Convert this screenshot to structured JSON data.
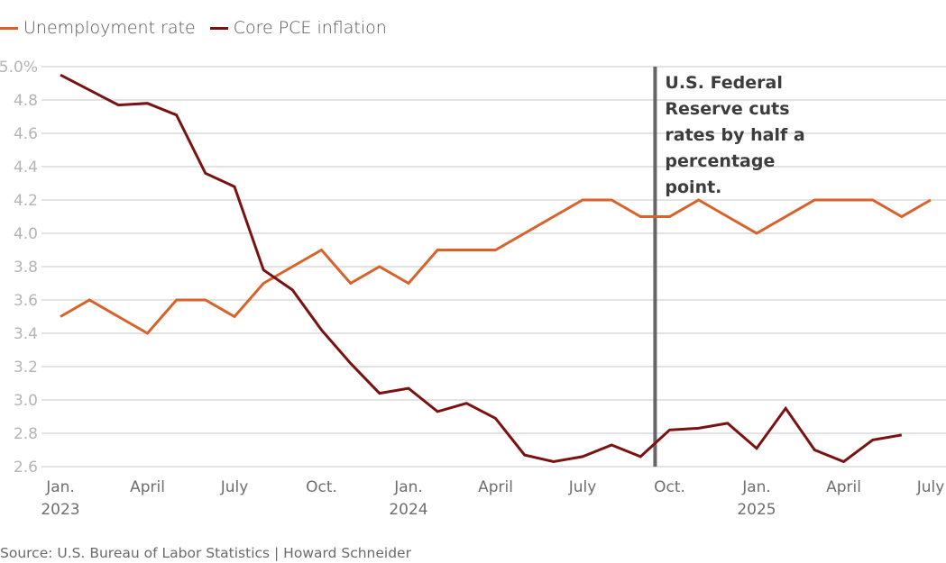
{
  "chart_data": {
    "type": "line",
    "title": "",
    "xlabel": "",
    "ylabel": "",
    "y_unit_suffix": "%",
    "ylim": [
      2.6,
      5.0
    ],
    "yticks": [
      5.0,
      4.8,
      4.6,
      4.4,
      4.2,
      4.0,
      3.8,
      3.6,
      3.4,
      3.2,
      3.0,
      2.8,
      2.6
    ],
    "ytick_labels": [
      "5.0%",
      "4.8",
      "4.6",
      "4.4",
      "4.2",
      "4.0",
      "3.8",
      "3.6",
      "3.4",
      "3.2",
      "3.0",
      "2.8",
      "2.6"
    ],
    "grid": true,
    "legend_position": "top-left",
    "x_months": [
      "2023-01",
      "2023-02",
      "2023-03",
      "2023-04",
      "2023-05",
      "2023-06",
      "2023-07",
      "2023-08",
      "2023-09",
      "2023-10",
      "2023-11",
      "2023-12",
      "2024-01",
      "2024-02",
      "2024-03",
      "2024-04",
      "2024-05",
      "2024-06",
      "2024-07",
      "2024-08",
      "2024-09",
      "2024-10",
      "2024-11",
      "2024-12",
      "2025-01",
      "2025-02",
      "2025-03",
      "2025-04",
      "2025-05",
      "2025-06",
      "2025-07"
    ],
    "xticks": [
      {
        "index": 0,
        "label": "Jan.",
        "year": "2023"
      },
      {
        "index": 3,
        "label": "April",
        "year": ""
      },
      {
        "index": 6,
        "label": "July",
        "year": ""
      },
      {
        "index": 9,
        "label": "Oct.",
        "year": ""
      },
      {
        "index": 12,
        "label": "Jan.",
        "year": "2024"
      },
      {
        "index": 15,
        "label": "April",
        "year": ""
      },
      {
        "index": 18,
        "label": "July",
        "year": ""
      },
      {
        "index": 21,
        "label": "Oct.",
        "year": ""
      },
      {
        "index": 24,
        "label": "Jan.",
        "year": "2025"
      },
      {
        "index": 27,
        "label": "April",
        "year": ""
      },
      {
        "index": 30,
        "label": "July",
        "year": ""
      }
    ],
    "series": [
      {
        "name": "Unemployment rate",
        "color": "#d9622b",
        "values": [
          3.5,
          3.6,
          3.5,
          3.4,
          3.6,
          3.6,
          3.5,
          3.7,
          3.8,
          3.9,
          3.7,
          3.8,
          3.7,
          3.9,
          3.9,
          3.9,
          4.0,
          4.1,
          4.2,
          4.2,
          4.1,
          4.1,
          4.2,
          4.1,
          4.0,
          4.1,
          4.2,
          4.2,
          4.2,
          4.1,
          4.2
        ]
      },
      {
        "name": "Core PCE inflation",
        "color": "#7a1212",
        "values": [
          4.95,
          4.86,
          4.77,
          4.78,
          4.71,
          4.36,
          4.28,
          3.78,
          3.66,
          3.42,
          3.22,
          3.04,
          3.07,
          2.93,
          2.98,
          2.89,
          2.67,
          2.63,
          2.66,
          2.73,
          2.66,
          2.82,
          2.83,
          2.86,
          2.71,
          2.95,
          2.7,
          2.63,
          2.76,
          2.79
        ]
      }
    ],
    "annotations": [
      {
        "type": "vertical-line",
        "x_month_index": 20.5,
        "color": "#666666",
        "text_lines": [
          "U.S. Federal",
          "Reserve cuts",
          "rates by half a",
          "percentage",
          "point."
        ]
      }
    ]
  },
  "source": "Source: U.S. Bureau of Labor Statistics | Howard Schneider"
}
